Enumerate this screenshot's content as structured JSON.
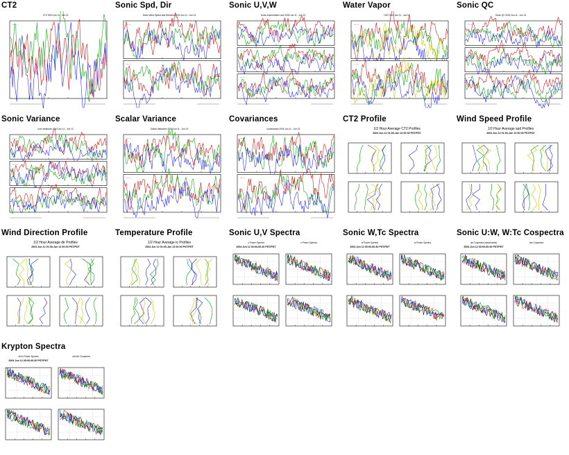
{
  "page": {
    "thumbnails": [
      {
        "title": "CT2",
        "kind": "ts1",
        "chart_title": "CT2 2004 Jun 11 - Jun 13",
        "sub1": "",
        "sub2": ""
      },
      {
        "title": "Sonic Spd, Dir",
        "kind": "ts2",
        "chart_title": "Sonic Wind Speed and Direction 2004 Jun 11 - Jun 13",
        "sub1": "",
        "sub2": ""
      },
      {
        "title": "Sonic U,V,W",
        "kind": "ts3",
        "chart_title": "Sonic Anemometer uvw 2004 Jun 11 - Jun 13",
        "sub1": "",
        "sub2": ""
      },
      {
        "title": "Water Vapor",
        "kind": "ts2",
        "chart_title": "H2O 2004 Jun 11 - Jun 13",
        "sub1": "",
        "sub2": ""
      },
      {
        "title": "Sonic QC",
        "kind": "ts3",
        "chart_title": "Sonic QC 2004 Jun 11 - Jun 13",
        "sub1": "",
        "sub2": ""
      },
      {
        "title": "Sonic Variance",
        "kind": "ts3",
        "chart_title": "uvw Variances 2004 Jun 11 - Jun 13",
        "sub1": "",
        "sub2": ""
      },
      {
        "title": "Scalar Variance",
        "kind": "ts2",
        "chart_title": "Scalar Variances 2004 Jun 11 - Jun 13",
        "sub1": "",
        "sub2": ""
      },
      {
        "title": "Covariances",
        "kind": "ts2",
        "chart_title": "Covariances 2004 Jun 11 - Jun 13",
        "sub1": "",
        "sub2": ""
      },
      {
        "title": "CT2 Profile",
        "kind": "prof",
        "chart_title": "1/2 Hour Average CT2 Profiles",
        "sub1": "2004 Jun 12 01:00-Jun 13 00:00 PST/PDT",
        "sub2": ""
      },
      {
        "title": "Wind Speed Profile",
        "kind": "prof",
        "chart_title": "1/2 Hour Average spd Profiles",
        "sub1": "2004 Jun 12 01:00-Jun 13 00:00 PST/PDT",
        "sub2": ""
      },
      {
        "title": "Wind Direction Profile",
        "kind": "prof",
        "chart_title": "1/2 Hour Average dir Profiles",
        "sub1": "2004 Jun 12 01:00-Jun 13 00:00 PST/PDT",
        "sub2": ""
      },
      {
        "title": "Temperature Profile",
        "kind": "prof",
        "chart_title": "1/2 Hour Average tc Profiles",
        "sub1": "2004 Jun 12 01:00-Jun 13 00:00 PST/PDT",
        "sub2": ""
      },
      {
        "title": "Sonic U,V Spectra",
        "kind": "spec",
        "chart_title": "u Power Spectra",
        "sub1": "2004 Jun 12 00:00-00:30 PST/PDT",
        "sub2": "v Power Spectra"
      },
      {
        "title": "Sonic W,Tc Spectra",
        "kind": "spec",
        "chart_title": "w Power Spectra",
        "sub1": "2004 Jun 12 00:00-00:30 PST/PDT",
        "sub2": "tc Power Spectra"
      },
      {
        "title": "Sonic U:W, W:Tc Cospectra",
        "kind": "spec",
        "chart_title": "uw Cospectra (streamwise)",
        "sub1": "2004 Jun 12 00:00-00:30 PST/PDT",
        "sub2": "wtc Cospectra"
      },
      {
        "title": "Krypton Spectra",
        "kind": "spec",
        "chart_title": "kh2o Power Spectra",
        "sub1": "2004 Jun 12 00:00-00:30 PST/PDT",
        "sub2": "w:kh2o Cospectra"
      }
    ]
  },
  "colors": {
    "series": [
      "#d40000",
      "#00a000",
      "#1a1aff",
      "#000000"
    ],
    "yellow": "#c8c800",
    "frame": "#000000"
  }
}
